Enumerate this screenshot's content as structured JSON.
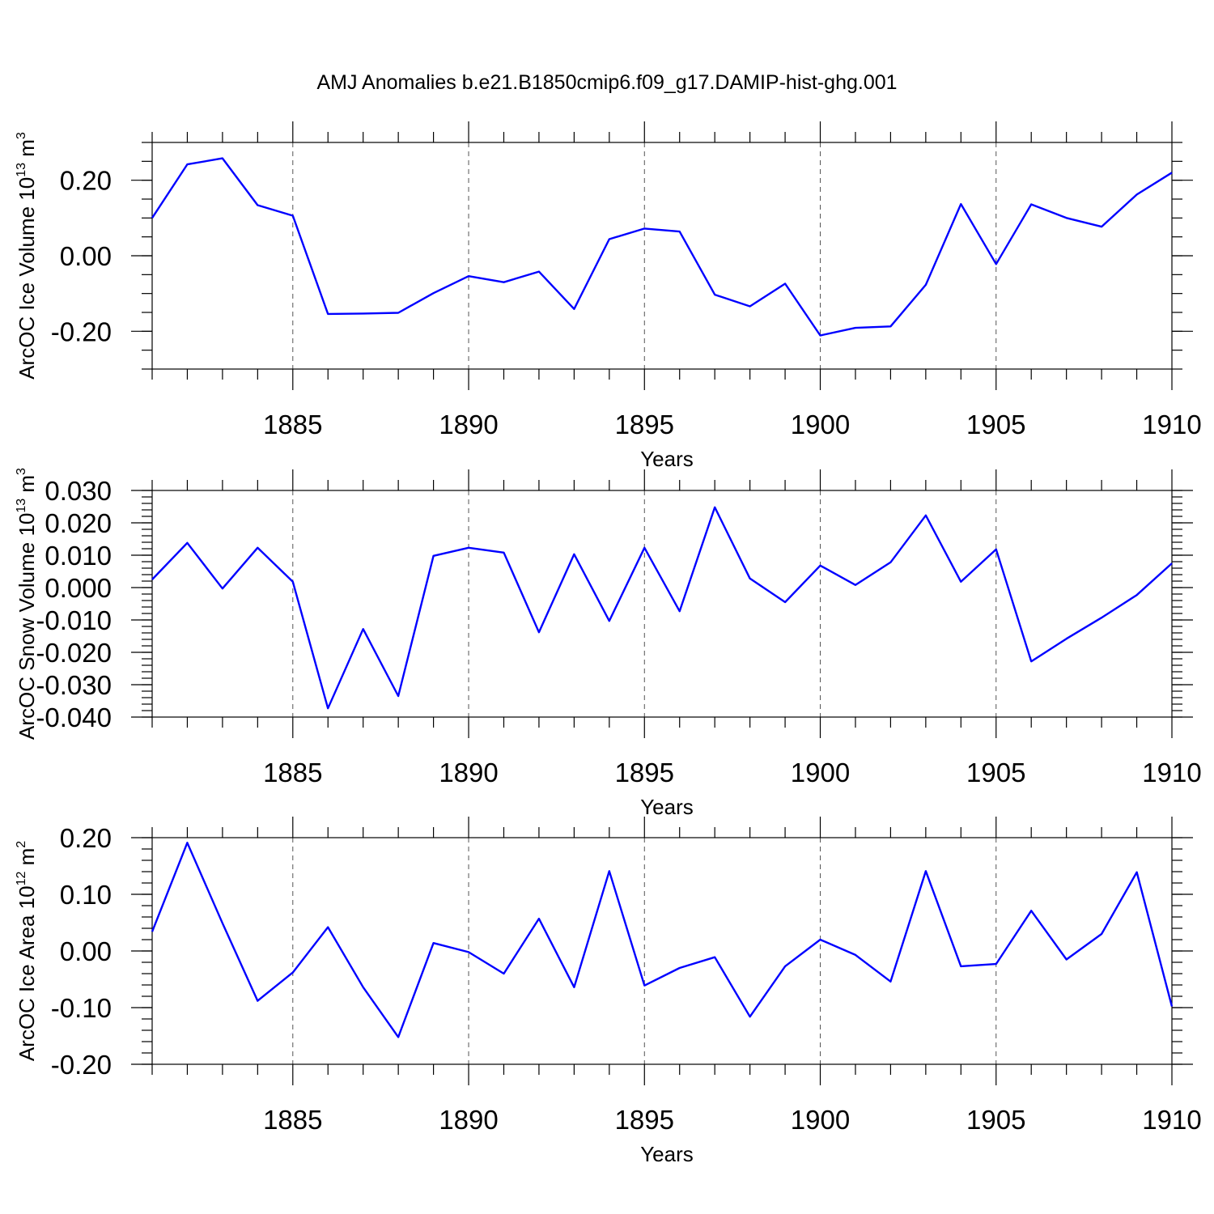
{
  "title": "AMJ Anomalies b.e21.B1850cmip6.f09_g17.DAMIP-hist-ghg.001",
  "line_color": "#0000ff",
  "chart_data": [
    {
      "type": "line",
      "xlabel": "Years",
      "ylabel_main": "ArcOC Ice Volume 10",
      "ylabel_exp": "13",
      "ylabel_unit": " m",
      "ylabel_unit_exp": "3",
      "ylim": [
        -0.3,
        0.3
      ],
      "xlim": [
        1881,
        1910
      ],
      "yticks": [
        -0.2,
        0.0,
        0.2
      ],
      "ytick_labels": [
        "-0.20",
        "0.00",
        "0.20"
      ],
      "yminor_step": 0.05,
      "xticks": [
        1885,
        1890,
        1895,
        1900,
        1905,
        1910
      ],
      "xtick_labels": [
        "1885",
        "1890",
        "1895",
        "1900",
        "1905",
        "1910"
      ],
      "x": [
        1881,
        1882,
        1883,
        1884,
        1885,
        1886,
        1887,
        1888,
        1889,
        1890,
        1891,
        1892,
        1893,
        1894,
        1895,
        1896,
        1897,
        1898,
        1899,
        1900,
        1901,
        1902,
        1903,
        1904,
        1905,
        1906,
        1907,
        1908,
        1909,
        1910
      ],
      "values": [
        0.1,
        0.242,
        0.258,
        0.134,
        0.106,
        -0.154,
        -0.153,
        -0.151,
        -0.099,
        -0.054,
        -0.07,
        -0.042,
        -0.141,
        0.044,
        0.072,
        0.064,
        -0.103,
        -0.134,
        -0.074,
        -0.211,
        -0.191,
        -0.187,
        -0.077,
        0.137,
        -0.022,
        0.136,
        0.1,
        0.077,
        0.162,
        0.22
      ]
    },
    {
      "type": "line",
      "xlabel": "Years",
      "ylabel_main": "ArcOC Snow Volume 10",
      "ylabel_exp": "13",
      "ylabel_unit": " m",
      "ylabel_unit_exp": "3",
      "ylim": [
        -0.04,
        0.03
      ],
      "xlim": [
        1881,
        1910
      ],
      "yticks": [
        -0.04,
        -0.03,
        -0.02,
        -0.01,
        0.0,
        0.01,
        0.02,
        0.03
      ],
      "ytick_labels": [
        "-0.040",
        "-0.030",
        "-0.020",
        "-0.010",
        "0.000",
        "0.010",
        "0.020",
        "0.030"
      ],
      "yminor_step": 0.002,
      "xticks": [
        1885,
        1890,
        1895,
        1900,
        1905,
        1910
      ],
      "xtick_labels": [
        "1885",
        "1890",
        "1895",
        "1900",
        "1905",
        "1910"
      ],
      "x": [
        1881,
        1882,
        1883,
        1884,
        1885,
        1886,
        1887,
        1888,
        1889,
        1890,
        1891,
        1892,
        1893,
        1894,
        1895,
        1896,
        1897,
        1898,
        1899,
        1900,
        1901,
        1902,
        1903,
        1904,
        1905,
        1906,
        1907,
        1908,
        1909,
        1910
      ],
      "values": [
        0.0025,
        0.0138,
        -0.0003,
        0.0123,
        0.0018,
        -0.0373,
        -0.0128,
        -0.0335,
        0.0098,
        0.0123,
        0.0108,
        -0.0138,
        0.0103,
        -0.0103,
        0.0123,
        -0.0073,
        0.0248,
        0.0028,
        -0.0045,
        0.0068,
        0.0008,
        0.0078,
        0.0223,
        0.0018,
        0.0118,
        -0.0228,
        -0.0158,
        -0.0093,
        -0.0023,
        0.0075
      ]
    },
    {
      "type": "line",
      "xlabel": "Years",
      "ylabel_main": "ArcOC Ice Area 10",
      "ylabel_exp": "12",
      "ylabel_unit": " m",
      "ylabel_unit_exp": "2",
      "ylim": [
        -0.2,
        0.2
      ],
      "xlim": [
        1881,
        1910
      ],
      "yticks": [
        -0.2,
        -0.1,
        0.0,
        0.1,
        0.2
      ],
      "ytick_labels": [
        "-0.20",
        "-0.10",
        "0.00",
        "0.10",
        "0.20"
      ],
      "yminor_step": 0.02,
      "xticks": [
        1885,
        1890,
        1895,
        1900,
        1905,
        1910
      ],
      "xtick_labels": [
        "1885",
        "1890",
        "1895",
        "1900",
        "1905",
        "1910"
      ],
      "x": [
        1881,
        1882,
        1883,
        1884,
        1885,
        1886,
        1887,
        1888,
        1889,
        1890,
        1891,
        1892,
        1893,
        1894,
        1895,
        1896,
        1897,
        1898,
        1899,
        1900,
        1901,
        1902,
        1903,
        1904,
        1905,
        1906,
        1907,
        1908,
        1909,
        1910
      ],
      "values": [
        0.034,
        0.191,
        0.049,
        -0.088,
        -0.038,
        0.042,
        -0.064,
        -0.152,
        0.014,
        -0.002,
        -0.04,
        0.057,
        -0.064,
        0.141,
        -0.061,
        -0.03,
        -0.011,
        -0.116,
        -0.027,
        0.02,
        -0.007,
        -0.054,
        0.141,
        -0.027,
        -0.023,
        0.071,
        -0.015,
        0.03,
        0.139,
        -0.098
      ]
    }
  ]
}
